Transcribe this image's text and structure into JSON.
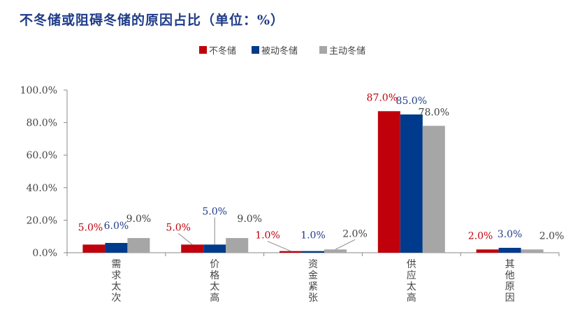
{
  "chart_data": {
    "type": "bar",
    "title": "不冬储或阻碍冬储的原因占比（单位：%）",
    "categories": [
      "需求太次",
      "价格太高",
      "资金紧张",
      "供应太高",
      "其他原因"
    ],
    "series": [
      {
        "name": "不冬储",
        "color": "#c0000b",
        "values": [
          5.0,
          5.0,
          1.0,
          87.0,
          2.0
        ]
      },
      {
        "name": "被动冬储",
        "color": "#003a8c",
        "values": [
          6.0,
          5.0,
          1.0,
          85.0,
          3.0
        ]
      },
      {
        "name": "主动冬储",
        "color": "#a6a6a6",
        "values": [
          9.0,
          9.0,
          2.0,
          78.0,
          2.0
        ]
      }
    ],
    "data_labels": [
      [
        "5.0%",
        "6.0%",
        "9.0%"
      ],
      [
        "5.0%",
        "5.0%",
        "9.0%"
      ],
      [
        "1.0%",
        "1.0%",
        "2.0%"
      ],
      [
        "87.0%",
        "85.0%",
        "78.0%"
      ],
      [
        "2.0%",
        "3.0%",
        "2.0%"
      ]
    ],
    "label_colors": [
      "#c0000b",
      "#1f3c88",
      "#404040"
    ],
    "yticks": [
      "0.0%",
      "20.0%",
      "40.0%",
      "60.0%",
      "80.0%",
      "100.0%"
    ],
    "ylim": [
      0,
      100
    ],
    "legend_position": "top-center",
    "grid": false
  }
}
